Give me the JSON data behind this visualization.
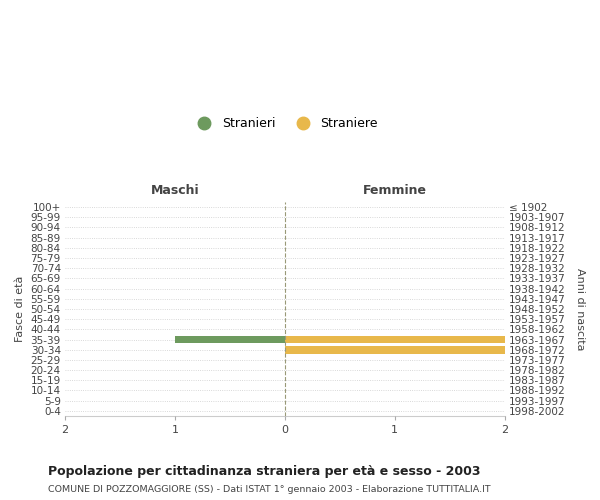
{
  "age_groups": [
    "100+",
    "95-99",
    "90-94",
    "85-89",
    "80-84",
    "75-79",
    "70-74",
    "65-69",
    "60-64",
    "55-59",
    "50-54",
    "45-49",
    "40-44",
    "35-39",
    "30-34",
    "25-29",
    "20-24",
    "15-19",
    "10-14",
    "5-9",
    "0-4"
  ],
  "birth_years": [
    "≤ 1902",
    "1903-1907",
    "1908-1912",
    "1913-1917",
    "1918-1922",
    "1923-1927",
    "1928-1932",
    "1933-1937",
    "1938-1942",
    "1943-1947",
    "1948-1952",
    "1953-1957",
    "1958-1962",
    "1963-1967",
    "1968-1972",
    "1973-1977",
    "1978-1982",
    "1983-1987",
    "1988-1992",
    "1993-1997",
    "1998-2002"
  ],
  "males": [
    0,
    0,
    0,
    0,
    0,
    0,
    0,
    0,
    0,
    0,
    0,
    0,
    0,
    1,
    0,
    0,
    0,
    0,
    0,
    0,
    0
  ],
  "females": [
    0,
    0,
    0,
    0,
    0,
    0,
    0,
    0,
    0,
    0,
    0,
    0,
    0,
    2,
    2,
    0,
    0,
    0,
    0,
    0,
    0
  ],
  "male_color": "#6d9a5e",
  "female_color": "#e8b84b",
  "xlim": 2,
  "title": "Popolazione per cittadinanza straniera per età e sesso - 2003",
  "subtitle": "COMUNE DI POZZOMAGGIORE (SS) - Dati ISTAT 1° gennaio 2003 - Elaborazione TUTTITALIA.IT",
  "ylabel_left": "Fasce di età",
  "ylabel_right": "Anni di nascita",
  "header_left": "Maschi",
  "header_right": "Femmine",
  "legend_male": "Stranieri",
  "legend_female": "Straniere",
  "bg_color": "#ffffff",
  "grid_color": "#cccccc",
  "center_line_color": "#999977",
  "bar_height": 0.75
}
